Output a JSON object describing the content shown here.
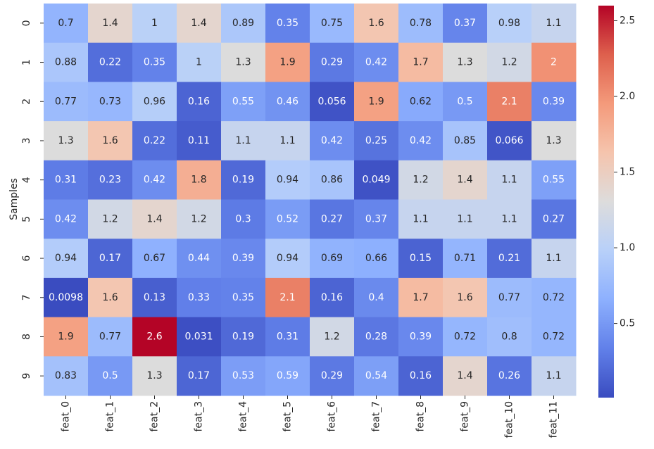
{
  "chart_data": {
    "type": "heatmap",
    "ylabel": "Samples",
    "x": [
      "feat_0",
      "feat_1",
      "feat_2",
      "feat_3",
      "feat_4",
      "feat_5",
      "feat_6",
      "feat_7",
      "feat_8",
      "feat_9",
      "feat_10",
      "feat_11"
    ],
    "y": [
      "0",
      "1",
      "2",
      "3",
      "4",
      "5",
      "6",
      "7",
      "8",
      "9"
    ],
    "values": [
      [
        0.7,
        1.4,
        1,
        1.4,
        0.89,
        0.35,
        0.75,
        1.6,
        0.78,
        0.37,
        0.98,
        1.1
      ],
      [
        0.88,
        0.22,
        0.35,
        1,
        1.3,
        1.9,
        0.29,
        0.42,
        1.7,
        1.3,
        1.2,
        2
      ],
      [
        0.77,
        0.73,
        0.96,
        0.16,
        0.55,
        0.46,
        0.056,
        1.9,
        0.62,
        0.5,
        2.1,
        0.39
      ],
      [
        1.3,
        1.6,
        0.22,
        0.11,
        1.1,
        1.1,
        0.42,
        0.25,
        0.42,
        0.85,
        0.066,
        1.3
      ],
      [
        0.31,
        0.23,
        0.42,
        1.8,
        0.19,
        0.94,
        0.86,
        0.049,
        1.2,
        1.4,
        1.1,
        0.55
      ],
      [
        0.42,
        1.2,
        1.4,
        1.2,
        0.3,
        0.52,
        0.27,
        0.37,
        1.1,
        1.1,
        1.1,
        0.27
      ],
      [
        0.94,
        0.17,
        0.67,
        0.44,
        0.39,
        0.94,
        0.69,
        0.66,
        0.15,
        0.71,
        0.21,
        1.1
      ],
      [
        0.0098,
        1.6,
        0.13,
        0.33,
        0.35,
        2.1,
        0.16,
        0.4,
        1.7,
        1.6,
        0.77,
        0.72
      ],
      [
        1.9,
        0.77,
        2.6,
        0.031,
        0.19,
        0.31,
        1.2,
        0.28,
        0.39,
        0.72,
        0.8,
        0.72
      ],
      [
        0.83,
        0.5,
        1.3,
        0.17,
        0.53,
        0.59,
        0.29,
        0.54,
        0.16,
        1.4,
        0.26,
        1.1
      ]
    ],
    "zlim": [
      0.0098,
      2.6
    ],
    "zticks": [
      0.5,
      {
        "value": 1,
        "label": "1.0"
      },
      1.5,
      {
        "value": 2,
        "label": "2.0"
      },
      2.5
    ],
    "colormap": [
      "#3a4cc0",
      "#6180e9",
      "#8db0fe",
      "#b8d0f9",
      "#dddcdc",
      "#f5c4ad",
      "#f49a7b",
      "#de604d",
      "#b40426"
    ]
  }
}
